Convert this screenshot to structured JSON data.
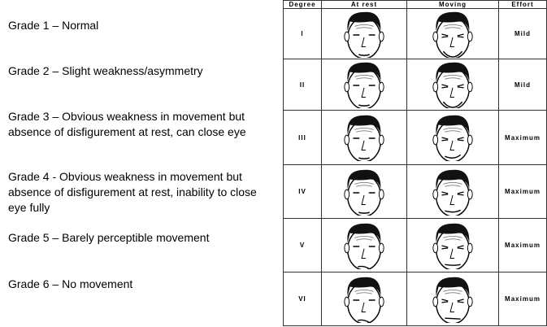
{
  "grades": [
    "Grade 1 – Normal",
    "Grade 2 – Slight weakness/asymmetry",
    "Grade 3 – Obvious weakness in movement but absence of disfigurement at rest, can close eye",
    "Grade 4 - Obvious weakness in movement but absence of disfigurement at rest, inability to close eye fully",
    "Grade 5 – Barely perceptible movement",
    "Grade 6 – No movement"
  ],
  "table": {
    "headers": [
      "Degree",
      "At rest",
      "Moving",
      "Effort"
    ],
    "rows": [
      {
        "degree": "I",
        "effort": "Mild"
      },
      {
        "degree": "II",
        "effort": "Mild"
      },
      {
        "degree": "III",
        "effort": "Maximum"
      },
      {
        "degree": "IV",
        "effort": "Maximum"
      },
      {
        "degree": "V",
        "effort": "Maximum"
      },
      {
        "degree": "VI",
        "effort": "Maximum"
      }
    ]
  }
}
